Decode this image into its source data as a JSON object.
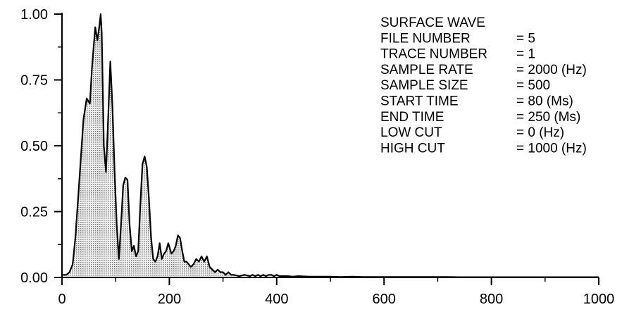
{
  "chart_data": {
    "type": "area",
    "title": "",
    "xlabel": "",
    "ylabel": "",
    "xlim": [
      0,
      1000
    ],
    "ylim": [
      0,
      1
    ],
    "grid": false,
    "x_ticks": [
      "0",
      "200",
      "400",
      "600",
      "800",
      "1000"
    ],
    "y_ticks": [
      "0.00",
      "0.25",
      "0.50",
      "0.75",
      "1.00"
    ],
    "fill": "dotted-gray",
    "info": {
      "heading": "SURFACE WAVE",
      "rows": [
        {
          "label": "FILE NUMBER",
          "value": "= 5"
        },
        {
          "label": "TRACE NUMBER",
          "value": "= 1"
        },
        {
          "label": "SAMPLE RATE",
          "value": "= 2000 (Hz)"
        },
        {
          "label": "SAMPLE SIZE",
          "value": "= 500"
        },
        {
          "label": "START TIME",
          "value": "= 80 (Ms)"
        },
        {
          "label": "END TIME",
          "value": "= 250 (Ms)"
        },
        {
          "label": "LOW CUT",
          "value": "= 0 (Hz)"
        },
        {
          "label": "HIGH CUT",
          "value": "= 1000 (Hz)"
        }
      ]
    },
    "x": [
      0,
      8,
      14,
      20,
      25,
      30,
      35,
      40,
      46,
      52,
      56,
      62,
      66,
      70,
      72,
      74,
      78,
      82,
      86,
      90,
      94,
      98,
      102,
      106,
      110,
      114,
      118,
      122,
      126,
      130,
      134,
      138,
      142,
      146,
      150,
      154,
      158,
      162,
      166,
      170,
      174,
      178,
      182,
      186,
      190,
      194,
      198,
      204,
      208,
      212,
      216,
      220,
      224,
      228,
      232,
      236,
      240,
      245,
      250,
      255,
      260,
      265,
      270,
      275,
      280,
      285,
      290,
      295,
      300,
      305,
      310,
      315,
      320,
      330,
      340,
      350,
      355,
      360,
      365,
      370,
      375,
      380,
      385,
      390,
      395,
      400,
      405,
      410,
      420,
      430,
      440,
      460,
      480,
      500,
      520,
      540,
      560,
      580,
      600,
      620,
      640,
      660,
      680,
      700,
      720,
      740,
      760,
      780,
      800,
      850,
      900,
      950,
      1000
    ],
    "y": [
      0.01,
      0.01,
      0.02,
      0.05,
      0.15,
      0.3,
      0.45,
      0.6,
      0.68,
      0.66,
      0.8,
      0.95,
      0.9,
      0.96,
      1.0,
      0.93,
      0.5,
      0.4,
      0.6,
      0.82,
      0.65,
      0.4,
      0.2,
      0.07,
      0.2,
      0.35,
      0.38,
      0.37,
      0.2,
      0.1,
      0.12,
      0.08,
      0.1,
      0.28,
      0.43,
      0.46,
      0.42,
      0.3,
      0.15,
      0.07,
      0.06,
      0.08,
      0.13,
      0.07,
      0.09,
      0.1,
      0.13,
      0.09,
      0.1,
      0.12,
      0.16,
      0.15,
      0.1,
      0.06,
      0.06,
      0.05,
      0.04,
      0.05,
      0.07,
      0.06,
      0.08,
      0.06,
      0.08,
      0.04,
      0.03,
      0.02,
      0.03,
      0.02,
      0.02,
      0.01,
      0.02,
      0.01,
      0.01,
      0.005,
      0.01,
      0.005,
      0.01,
      0.005,
      0.01,
      0.005,
      0.01,
      0.005,
      0.01,
      0.01,
      0.005,
      0.01,
      0.005,
      0.005,
      0.005,
      0.003,
      0.005,
      0.003,
      0.003,
      0.003,
      0.002,
      0.003,
      0.002,
      0.002,
      0.002,
      0.002,
      0.002,
      0.002,
      0.002,
      0.002,
      0.002,
      0.001,
      0.001,
      0.001,
      0.001,
      0.001,
      0.001,
      0.001,
      0.001
    ]
  }
}
